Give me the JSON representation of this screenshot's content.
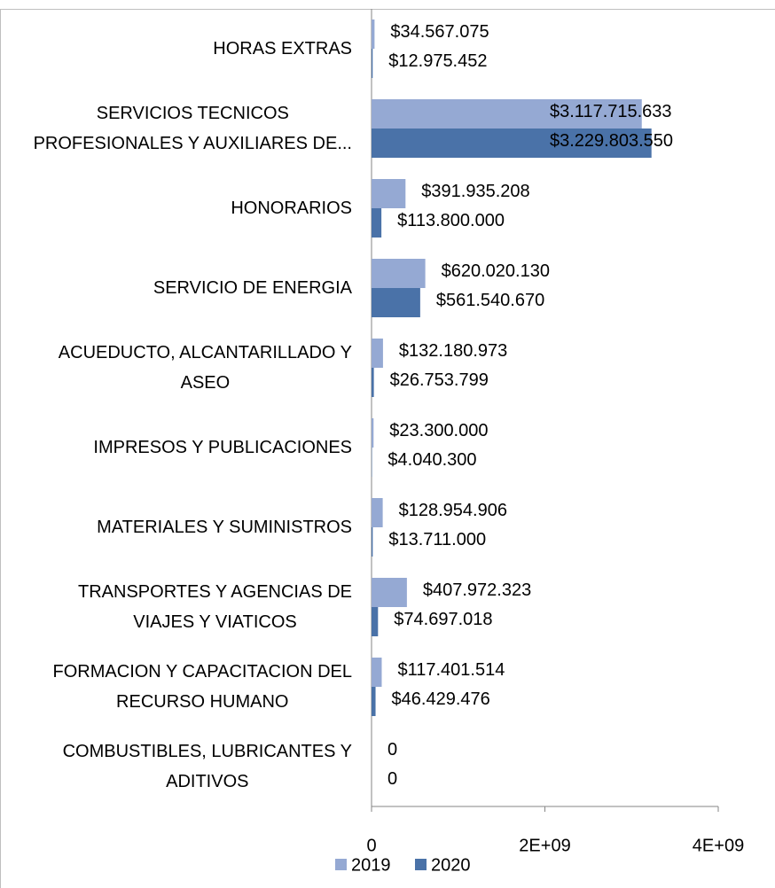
{
  "chart_data": {
    "type": "bar",
    "orientation": "horizontal",
    "categories": [
      "HORAS EXTRAS",
      "SERVICIOS TECNICOS\nPROFESIONALES Y AUXILIARES DE...",
      "HONORARIOS",
      "SERVICIO DE ENERGIA",
      "ACUEDUCTO, ALCANTARILLADO Y\nASEO",
      "IMPRESOS Y PUBLICACIONES",
      "MATERIALES Y SUMINISTROS",
      "TRANSPORTES Y AGENCIAS DE\nVIAJES Y VIATICOS",
      "FORMACION Y CAPACITACION DEL\nRECURSO HUMANO",
      "COMBUSTIBLES, LUBRICANTES Y\nADITIVOS"
    ],
    "series": [
      {
        "name": "2019",
        "color": "#95a9d3",
        "values": [
          34567075,
          3117715633,
          391935208,
          620020130,
          132180973,
          23300000,
          128954906,
          407972323,
          117401514,
          0
        ],
        "value_labels": [
          "$34.567.075",
          "$3.117.715.633",
          "$391.935.208",
          "$620.020.130",
          "$132.180.973",
          "$23.300.000",
          "$128.954.906",
          "$407.972.323",
          "$117.401.514",
          "0"
        ]
      },
      {
        "name": "2020",
        "color": "#4a72a8",
        "values": [
          12975452,
          3229803550,
          113800000,
          561540670,
          26753799,
          4040300,
          13711000,
          74697018,
          46429476,
          0
        ],
        "value_labels": [
          "$12.975.452",
          "$3.229.803.550",
          "$113.800.000",
          "$561.540.670",
          "$26.753.799",
          "$4.040.300",
          "$13.711.000",
          "$74.697.018",
          "$46.429.476",
          "0"
        ]
      }
    ],
    "xlim": [
      0,
      4000000000
    ],
    "xticks": [
      0,
      {
        "value": 2000000000,
        "label": "2E+09"
      },
      {
        "value": 4000000000,
        "label": "4E+09"
      }
    ],
    "legend": "bottom"
  }
}
